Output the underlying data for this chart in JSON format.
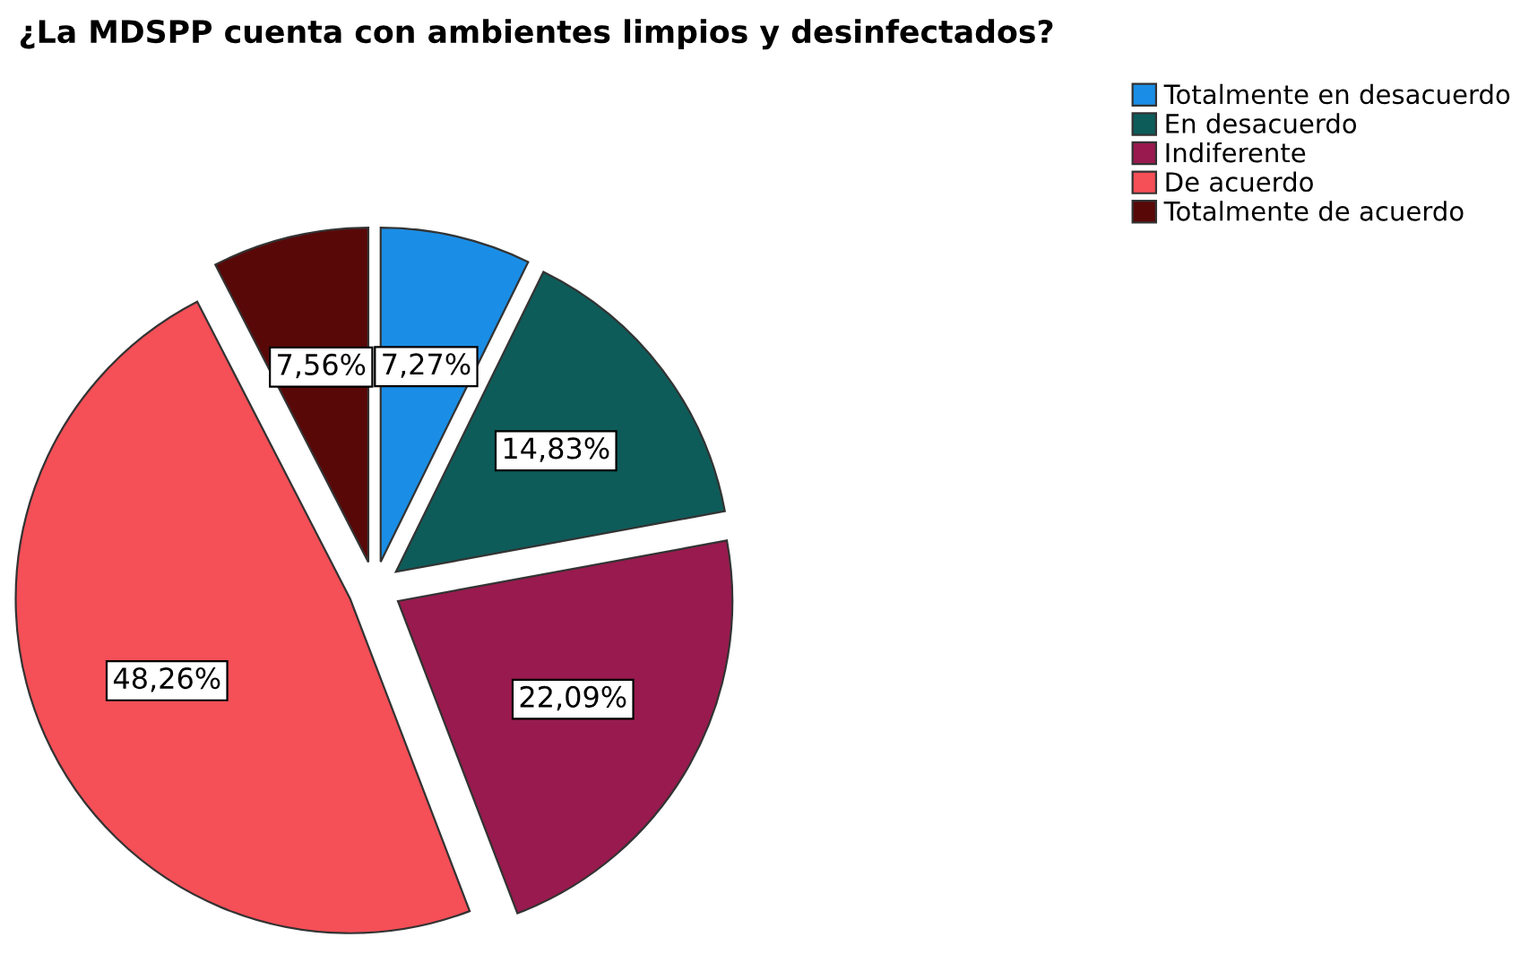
{
  "chart_data": {
    "type": "pie",
    "title": "¿La MDSPP cuenta con ambientes limpios y desinfectados?",
    "categories": [
      "Totalmente en desacuerdo",
      "En desacuerdo",
      "Indiferente",
      "De acuerdo",
      "Totalmente de acuerdo"
    ],
    "values": [
      7.27,
      14.83,
      22.09,
      48.26,
      7.56
    ],
    "colors": [
      "#1a8ee6",
      "#0d5c5a",
      "#991a4e",
      "#f54f57",
      "#590808"
    ],
    "value_labels": [
      "7,27%",
      "14,83%",
      "22,09%",
      "48,26%",
      "7,56%"
    ],
    "legend": "top right"
  }
}
